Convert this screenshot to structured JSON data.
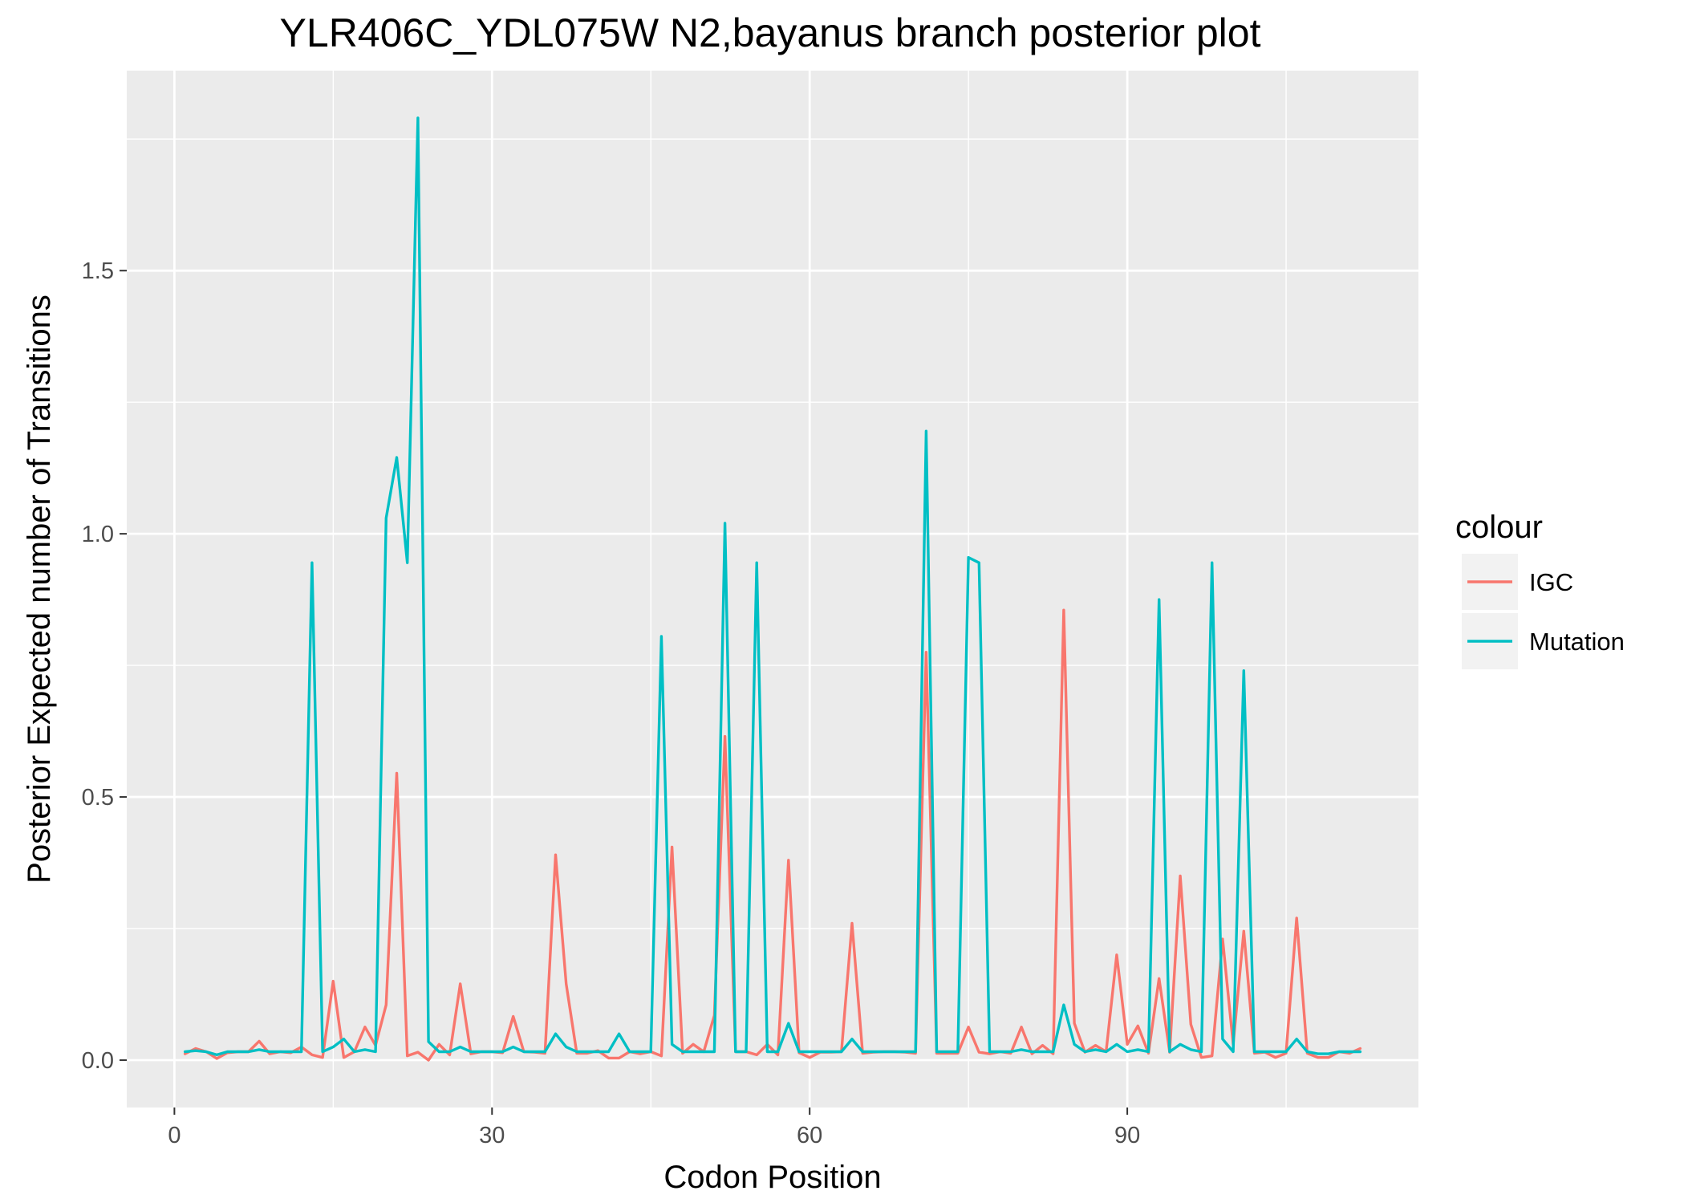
{
  "chart_data": {
    "type": "line",
    "title": "YLR406C_YDL075W N2,bayanus branch posterior plot",
    "xlabel": "Codon Position",
    "ylabel": "Posterior Expected number of Transitions",
    "xlim": [
      -4.5,
      117.5
    ],
    "ylim": [
      -0.09,
      1.88
    ],
    "x_ticks": [
      0,
      30,
      60,
      90
    ],
    "x_tick_labels": [
      "0",
      "30",
      "60",
      "90"
    ],
    "y_ticks": [
      0,
      0.5,
      1,
      1.5
    ],
    "y_tick_labels": [
      "0.0",
      "0.5",
      "1.0",
      "1.5"
    ],
    "grid": true,
    "legend": {
      "title": "colour",
      "position": "right"
    },
    "x": [
      1,
      2,
      3,
      4,
      5,
      6,
      7,
      8,
      9,
      10,
      11,
      12,
      13,
      14,
      15,
      16,
      17,
      18,
      19,
      20,
      21,
      22,
      23,
      24,
      25,
      26,
      27,
      28,
      29,
      30,
      31,
      32,
      33,
      34,
      35,
      36,
      37,
      38,
      39,
      40,
      41,
      42,
      43,
      44,
      45,
      46,
      47,
      48,
      49,
      50,
      51,
      52,
      53,
      54,
      55,
      56,
      57,
      58,
      59,
      60,
      61,
      62,
      63,
      64,
      65,
      66,
      67,
      68,
      69,
      70,
      71,
      72,
      73,
      74,
      75,
      76,
      77,
      78,
      79,
      80,
      81,
      82,
      83,
      84,
      85,
      86,
      87,
      88,
      89,
      90,
      91,
      92,
      93,
      94,
      95,
      96,
      97,
      98,
      99,
      100,
      101,
      102,
      103,
      104,
      105,
      106,
      107,
      108,
      109,
      110,
      111,
      112
    ],
    "series": [
      {
        "name": "IGC",
        "color": "#F8766D",
        "values": [
          0.012,
          0.022,
          0.016,
          0.003,
          0.014,
          0.016,
          0.016,
          0.036,
          0.012,
          0.016,
          0.014,
          0.025,
          0.01,
          0.005,
          0.15,
          0.005,
          0.016,
          0.063,
          0.028,
          0.105,
          0.545,
          0.008,
          0.015,
          0.0,
          0.03,
          0.01,
          0.145,
          0.012,
          0.016,
          0.016,
          0.014,
          0.083,
          0.016,
          0.015,
          0.013,
          0.39,
          0.145,
          0.013,
          0.013,
          0.018,
          0.004,
          0.004,
          0.016,
          0.012,
          0.016,
          0.008,
          0.405,
          0.013,
          0.03,
          0.016,
          0.085,
          0.615,
          0.016,
          0.016,
          0.01,
          0.03,
          0.01,
          0.38,
          0.014,
          0.005,
          0.015,
          0.015,
          0.016,
          0.26,
          0.013,
          0.015,
          0.016,
          0.016,
          0.015,
          0.013,
          0.775,
          0.013,
          0.013,
          0.013,
          0.063,
          0.015,
          0.012,
          0.016,
          0.013,
          0.063,
          0.012,
          0.028,
          0.012,
          0.855,
          0.07,
          0.015,
          0.028,
          0.016,
          0.2,
          0.03,
          0.065,
          0.013,
          0.155,
          0.015,
          0.35,
          0.068,
          0.005,
          0.008,
          0.23,
          0.03,
          0.245,
          0.013,
          0.015,
          0.005,
          0.013,
          0.27,
          0.013,
          0.005,
          0.005,
          0.016,
          0.013,
          0.022
        ]
      },
      {
        "name": "Mutation",
        "color": "#00BFC4",
        "values": [
          0.016,
          0.018,
          0.016,
          0.01,
          0.016,
          0.016,
          0.016,
          0.02,
          0.016,
          0.016,
          0.016,
          0.016,
          0.945,
          0.016,
          0.025,
          0.04,
          0.016,
          0.02,
          0.016,
          1.03,
          1.145,
          0.945,
          1.79,
          0.035,
          0.016,
          0.016,
          0.025,
          0.016,
          0.016,
          0.016,
          0.016,
          0.025,
          0.016,
          0.016,
          0.016,
          0.05,
          0.025,
          0.016,
          0.016,
          0.016,
          0.016,
          0.05,
          0.016,
          0.016,
          0.016,
          0.805,
          0.03,
          0.016,
          0.016,
          0.016,
          0.016,
          1.02,
          0.016,
          0.016,
          0.945,
          0.016,
          0.016,
          0.07,
          0.016,
          0.016,
          0.016,
          0.016,
          0.016,
          0.04,
          0.016,
          0.016,
          0.016,
          0.016,
          0.016,
          0.016,
          1.195,
          0.016,
          0.016,
          0.016,
          0.955,
          0.945,
          0.016,
          0.016,
          0.016,
          0.02,
          0.016,
          0.016,
          0.016,
          0.105,
          0.03,
          0.016,
          0.02,
          0.016,
          0.03,
          0.016,
          0.02,
          0.016,
          0.875,
          0.016,
          0.03,
          0.02,
          0.016,
          0.945,
          0.04,
          0.016,
          0.74,
          0.016,
          0.016,
          0.016,
          0.016,
          0.04,
          0.016,
          0.012,
          0.012,
          0.016,
          0.016,
          0.016
        ]
      }
    ]
  }
}
